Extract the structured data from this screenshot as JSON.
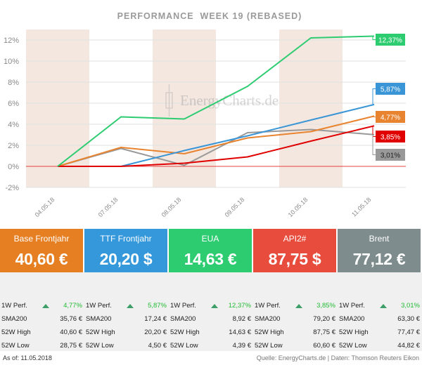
{
  "chart_data": {
    "type": "line",
    "title": "PERFORMANCE  WEEK 19 (REBASED)",
    "watermark": "EnergyCharts.de",
    "categories": [
      "04.05.18",
      "07.05.18",
      "08.05.18",
      "09.05.18",
      "10.05.18",
      "11.05.18"
    ],
    "yticks": [
      "-2%",
      "0%",
      "2%",
      "4%",
      "6%",
      "8%",
      "10%",
      "12%"
    ],
    "ylim": [
      -2,
      13
    ],
    "grid": true,
    "weekend_bands": true,
    "series": [
      {
        "name": "EUA",
        "color": "#2ecc71",
        "values": [
          0,
          4.7,
          4.5,
          7.6,
          12.2,
          12.37
        ],
        "end_label": "12,37%"
      },
      {
        "name": "TTF Frontjahr",
        "color": "#3a95d6",
        "values": [
          0,
          0,
          1.5,
          2.9,
          4.4,
          5.87
        ],
        "end_label": "5,87%"
      },
      {
        "name": "Base Frontjahr",
        "color": "#e8832f",
        "values": [
          0,
          1.8,
          1.2,
          2.7,
          3.3,
          4.77
        ],
        "end_label": "4,77%"
      },
      {
        "name": "API2#",
        "color": "#e00000",
        "values": [
          0,
          0,
          0.3,
          0.9,
          2.4,
          3.85
        ],
        "end_label": "3,85%"
      },
      {
        "name": "Brent",
        "color": "#999999",
        "values": [
          0,
          1.7,
          0.1,
          3.2,
          3.5,
          3.01
        ],
        "end_label": "3,01%"
      }
    ]
  },
  "tiles": [
    {
      "name": "Base Frontjahr",
      "price": "40,60 €",
      "color": "#e67e22",
      "perf_label": "1W Perf.",
      "perf": "4,77%",
      "sma_label": "SMA200",
      "sma": "35,76 €",
      "high_label": "52W High",
      "high": "40,60 €",
      "low_label": "52W Low",
      "low": "28,75 €"
    },
    {
      "name": "TTF Frontjahr",
      "price": "20,20 $",
      "color": "#3498db",
      "perf_label": "1W Perf.",
      "perf": "5,87%",
      "sma_label": "SMA200",
      "sma": "17,24 €",
      "high_label": "52W High",
      "high": "20,20 €",
      "low_label": "52W Low",
      "low": "4,50 €"
    },
    {
      "name": "EUA",
      "price": "14,63 €",
      "color": "#2ecc71",
      "perf_label": "1W Perf.",
      "perf": "12,37%",
      "sma_label": "SMA200",
      "sma": "8,92 €",
      "high_label": "52W High",
      "high": "14,63 €",
      "low_label": "52W Low",
      "low": "4,39 €"
    },
    {
      "name": "API2#",
      "price": "87,75 $",
      "color": "#e74c3c",
      "perf_label": "1W Perf.",
      "perf": "3,85%",
      "sma_label": "SMA200",
      "sma": "79,20 €",
      "high_label": "52W High",
      "high": "87,75 €",
      "low_label": "52W Low",
      "low": "60,60 €"
    },
    {
      "name": "Brent",
      "price": "77,12 €",
      "color": "#7f8c8d",
      "perf_label": "1W Perf.",
      "perf": "3,01%",
      "sma_label": "SMA200",
      "sma": "63,30 €",
      "high_label": "52W High",
      "high": "77,47 €",
      "low_label": "52W Low",
      "low": "44,82 €"
    }
  ],
  "footer": {
    "as_of": "As of: 11.05.2018",
    "source": "Quelle: EnergyCharts.de | Daten: Thomson Reuters Eikon"
  }
}
